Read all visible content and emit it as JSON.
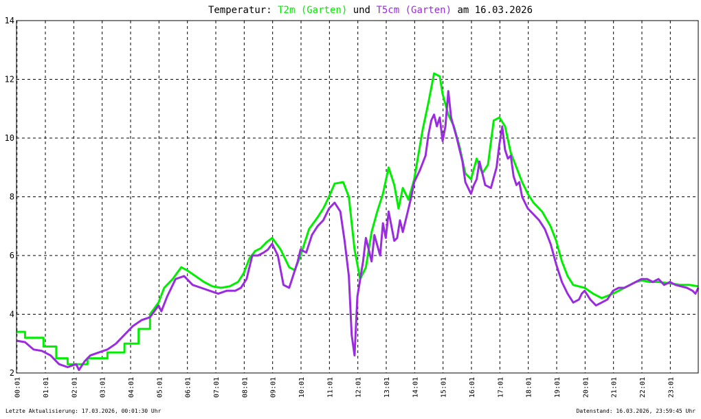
{
  "header": {
    "prefix": "Temperatur:",
    "series1_label": "T2m (Garten)",
    "mid": "und",
    "series2_label": "T5cm (Garten)",
    "suffix": "am 16.03.2026"
  },
  "footer": {
    "left": "Letzte Aktualisierung: 17.03.2026, 00:01:30 Uhr",
    "right": "Datenstand: 16.03.2026, 23:59:45 Uhr"
  },
  "colors": {
    "series1": "#00ee00",
    "series2": "#9a2be0",
    "grid": "#000000",
    "axis": "#000000"
  },
  "chart_data": {
    "type": "line",
    "title": "Temperatur: T2m (Garten) und T5cm (Garten) am 16.03.2026",
    "xlabel": "",
    "ylabel": "",
    "xlim": [
      0,
      24
    ],
    "ylim": [
      2,
      14
    ],
    "grid": true,
    "x_ticks": [
      "00:01",
      "01:01",
      "02:01",
      "03:01",
      "04:01",
      "05:01",
      "06:01",
      "07:01",
      "08:01",
      "09:01",
      "10:01",
      "11:01",
      "12:01",
      "13:01",
      "14:01",
      "15:01",
      "16:01",
      "17:01",
      "18:01",
      "19:01",
      "20:01",
      "21:01",
      "22:01",
      "23:01"
    ],
    "y_ticks": [
      2,
      4,
      6,
      8,
      10,
      12,
      14
    ],
    "series": [
      {
        "name": "T2m (Garten)",
        "x": [
          0,
          0.3,
          0.3,
          0.95,
          0.95,
          1.4,
          1.4,
          1.8,
          1.8,
          2.5,
          2.5,
          3.2,
          3.2,
          3.8,
          3.8,
          4.3,
          4.3,
          4.7,
          4.7,
          5.0,
          5.2,
          5.5,
          5.8,
          6.0,
          6.3,
          6.6,
          6.9,
          7.2,
          7.5,
          7.8,
          8.0,
          8.2,
          8.4,
          8.6,
          8.8,
          9.0,
          9.3,
          9.6,
          9.8,
          10.0,
          10.3,
          10.6,
          10.8,
          11.0,
          11.2,
          11.5,
          11.7,
          11.9,
          12.1,
          12.3,
          12.5,
          12.7,
          12.9,
          13.1,
          13.3,
          13.45,
          13.6,
          13.8,
          14.0,
          14.3,
          14.5,
          14.7,
          14.9,
          15.0,
          15.2,
          15.4,
          15.6,
          15.8,
          16.0,
          16.2,
          16.4,
          16.6,
          16.8,
          17.0,
          17.2,
          17.4,
          17.6,
          17.8,
          18.0,
          18.2,
          18.5,
          18.8,
          19.0,
          19.2,
          19.4,
          19.6,
          19.8,
          20.0,
          20.3,
          20.6,
          21.0,
          21.4,
          21.8,
          22.0,
          22.3,
          22.6,
          23.0,
          23.4,
          23.7,
          24.0
        ],
        "values": [
          3.4,
          3.4,
          3.2,
          3.2,
          2.9,
          2.9,
          2.5,
          2.5,
          2.3,
          2.3,
          2.5,
          2.5,
          2.7,
          2.7,
          3.0,
          3.0,
          3.5,
          3.5,
          4.0,
          4.4,
          4.9,
          5.2,
          5.6,
          5.5,
          5.3,
          5.1,
          4.95,
          4.9,
          4.95,
          5.1,
          5.4,
          5.9,
          6.15,
          6.25,
          6.45,
          6.6,
          6.2,
          5.6,
          5.5,
          6.0,
          6.9,
          7.3,
          7.6,
          8.0,
          8.45,
          8.5,
          8.0,
          6.2,
          5.2,
          5.6,
          6.8,
          7.5,
          8.1,
          9.0,
          8.4,
          7.6,
          8.3,
          7.9,
          8.6,
          10.3,
          11.2,
          12.2,
          12.1,
          11.5,
          10.8,
          10.4,
          9.7,
          8.8,
          8.6,
          9.3,
          8.8,
          9.1,
          10.6,
          10.7,
          10.4,
          9.5,
          9.0,
          8.5,
          8.1,
          7.8,
          7.5,
          7.0,
          6.5,
          5.8,
          5.3,
          5.0,
          4.95,
          4.9,
          4.7,
          4.55,
          4.7,
          4.9,
          5.1,
          5.15,
          5.1,
          5.1,
          5.05,
          5.0,
          5.0,
          4.95
        ]
      },
      {
        "name": "T5cm (Garten)",
        "x": [
          0,
          0.3,
          0.6,
          0.9,
          1.2,
          1.5,
          1.8,
          2.1,
          2.2,
          2.4,
          2.6,
          2.9,
          3.2,
          3.5,
          3.8,
          4.1,
          4.4,
          4.7,
          5.0,
          5.1,
          5.3,
          5.6,
          5.9,
          6.2,
          6.5,
          6.8,
          7.1,
          7.4,
          7.7,
          7.9,
          8.1,
          8.3,
          8.5,
          8.7,
          8.85,
          9.0,
          9.2,
          9.4,
          9.6,
          9.8,
          9.9,
          10.0,
          10.2,
          10.4,
          10.6,
          10.8,
          11.0,
          11.2,
          11.4,
          11.55,
          11.7,
          11.8,
          11.9,
          12.0,
          12.2,
          12.3,
          12.5,
          12.6,
          12.8,
          12.9,
          13.0,
          13.1,
          13.3,
          13.4,
          13.5,
          13.6,
          13.8,
          13.9,
          14.0,
          14.2,
          14.4,
          14.5,
          14.6,
          14.7,
          14.8,
          14.9,
          15.0,
          15.1,
          15.2,
          15.3,
          15.5,
          15.7,
          15.8,
          16.0,
          16.1,
          16.2,
          16.3,
          16.5,
          16.7,
          16.9,
          17.0,
          17.1,
          17.2,
          17.3,
          17.4,
          17.5,
          17.6,
          17.7,
          17.8,
          18.0,
          18.2,
          18.4,
          18.6,
          18.8,
          19.0,
          19.2,
          19.4,
          19.6,
          19.8,
          19.9,
          20.0,
          20.2,
          20.4,
          20.6,
          20.8,
          21.0,
          21.2,
          21.4,
          21.6,
          21.8,
          22.0,
          22.2,
          22.4,
          22.6,
          22.8,
          23.0,
          23.2,
          23.4,
          23.6,
          23.8,
          23.9,
          24.0
        ],
        "values": [
          3.1,
          3.05,
          2.8,
          2.75,
          2.6,
          2.3,
          2.2,
          2.3,
          2.1,
          2.4,
          2.6,
          2.7,
          2.8,
          3.0,
          3.3,
          3.6,
          3.8,
          3.9,
          4.3,
          4.1,
          4.6,
          5.2,
          5.3,
          5.0,
          4.9,
          4.8,
          4.7,
          4.8,
          4.8,
          4.9,
          5.2,
          6.0,
          6.0,
          6.1,
          6.2,
          6.4,
          6.0,
          5.0,
          4.9,
          5.5,
          5.8,
          6.2,
          6.1,
          6.7,
          7.0,
          7.2,
          7.6,
          7.8,
          7.5,
          6.5,
          5.3,
          3.3,
          2.6,
          4.6,
          5.8,
          6.6,
          5.8,
          6.7,
          6.0,
          7.1,
          6.6,
          7.5,
          6.5,
          6.6,
          7.2,
          6.8,
          7.6,
          8.0,
          8.5,
          8.9,
          9.4,
          10.1,
          10.6,
          10.8,
          10.4,
          10.7,
          9.9,
          10.4,
          11.6,
          10.7,
          10.0,
          9.2,
          8.5,
          8.1,
          8.4,
          8.6,
          9.2,
          8.4,
          8.3,
          9.0,
          9.8,
          10.4,
          9.6,
          9.3,
          9.4,
          8.7,
          8.4,
          8.5,
          8.0,
          7.6,
          7.4,
          7.2,
          6.9,
          6.4,
          5.7,
          5.1,
          4.7,
          4.4,
          4.5,
          4.7,
          4.8,
          4.5,
          4.3,
          4.4,
          4.5,
          4.8,
          4.9,
          4.9,
          5.0,
          5.1,
          5.2,
          5.2,
          5.1,
          5.2,
          5.0,
          5.1,
          5.0,
          4.95,
          4.9,
          4.8,
          4.7,
          4.9
        ]
      }
    ]
  }
}
